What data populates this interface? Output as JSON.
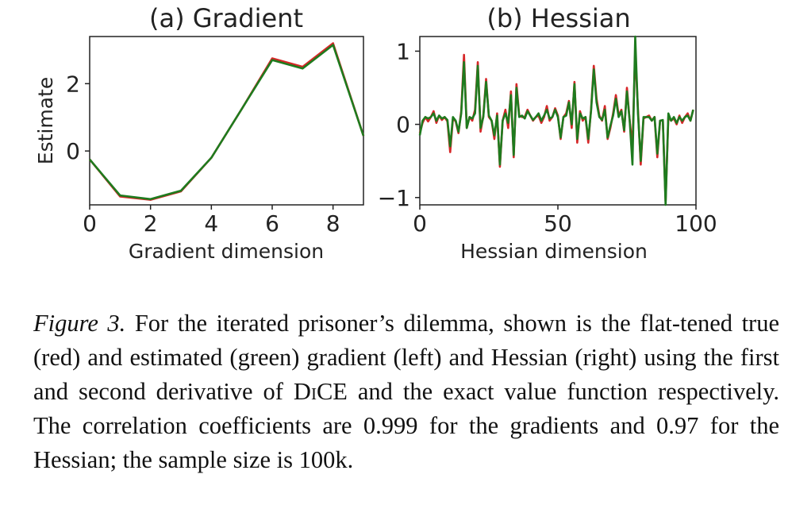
{
  "chart_data": [
    {
      "type": "line",
      "title": "(a) Gradient",
      "xlabel": "Gradient dimension",
      "ylabel": "Estimate",
      "xlim": [
        0,
        9
      ],
      "ylim": [
        -1.6,
        3.4
      ],
      "xticks": [
        0,
        2,
        4,
        6,
        8
      ],
      "yticks": [
        0,
        2
      ],
      "x": [
        0,
        1,
        2,
        3,
        4,
        5,
        6,
        7,
        8,
        9
      ],
      "series": [
        {
          "name": "true",
          "color": "#d62728",
          "values": [
            -0.25,
            -1.35,
            -1.45,
            -1.2,
            -0.2,
            1.25,
            2.75,
            2.5,
            3.2,
            0.45
          ]
        },
        {
          "name": "estimated",
          "color": "#1e7b1e",
          "values": [
            -0.25,
            -1.32,
            -1.43,
            -1.18,
            -0.2,
            1.25,
            2.7,
            2.45,
            3.15,
            0.45
          ]
        }
      ]
    },
    {
      "type": "line",
      "title": "(b) Hessian",
      "xlabel": "Hessian dimension",
      "ylabel": "",
      "xlim": [
        0,
        100
      ],
      "ylim": [
        -1.1,
        1.2
      ],
      "xticks": [
        0,
        50,
        100
      ],
      "yticks": [
        -1,
        0,
        1
      ],
      "x": [
        0,
        1,
        2,
        3,
        4,
        5,
        6,
        7,
        8,
        9,
        10,
        11,
        12,
        13,
        14,
        15,
        16,
        17,
        18,
        19,
        20,
        21,
        22,
        23,
        24,
        25,
        26,
        27,
        28,
        29,
        30,
        31,
        32,
        33,
        34,
        35,
        36,
        37,
        38,
        39,
        40,
        41,
        42,
        43,
        44,
        45,
        46,
        47,
        48,
        49,
        50,
        51,
        52,
        53,
        54,
        55,
        56,
        57,
        58,
        59,
        60,
        61,
        62,
        63,
        64,
        65,
        66,
        67,
        68,
        69,
        70,
        71,
        72,
        73,
        74,
        75,
        76,
        77,
        78,
        79,
        80,
        81,
        82,
        83,
        84,
        85,
        86,
        87,
        88,
        89,
        90,
        91,
        92,
        93,
        94,
        95,
        96,
        97,
        98,
        99
      ],
      "series": [
        {
          "name": "true",
          "color": "#d62728",
          "values": [
            -0.12,
            0.02,
            0.1,
            0.04,
            0.1,
            0.18,
            0.02,
            0.12,
            0.06,
            0.1,
            0.04,
            -0.38,
            0.08,
            0.04,
            -0.12,
            0.18,
            0.95,
            -0.05,
            0.1,
            0.05,
            0.2,
            0.85,
            -0.1,
            0.12,
            0.62,
            0.1,
            0.05,
            -0.2,
            0.15,
            -0.58,
            0.05,
            0.2,
            -0.05,
            0.45,
            -0.45,
            0.55,
            0.12,
            0.1,
            0.1,
            0.2,
            0.12,
            0.05,
            0.1,
            0.12,
            0.02,
            0.1,
            0.25,
            0.05,
            0.1,
            0.22,
            0.12,
            -0.2,
            0.1,
            0.15,
            0.32,
            -0.05,
            0.58,
            -0.25,
            0.18,
            0.05,
            0.1,
            -0.25,
            0.2,
            0.8,
            0.35,
            0.12,
            0.05,
            0.25,
            -0.2,
            -0.05,
            0.15,
            0.4,
            0.12,
            0.2,
            -0.1,
            0.5,
            0.05,
            -0.3,
            1.0,
            0.2,
            -0.55,
            0.08,
            0.1,
            0.12,
            0.05,
            0.1,
            -0.45,
            0.05,
            0.05,
            -1.05,
            0.1,
            0.05,
            0.08,
            0.0,
            0.12,
            0.02,
            0.1,
            0.15,
            0.05,
            0.2
          ]
        },
        {
          "name": "estimated",
          "color": "#1e7b1e",
          "values": [
            -0.15,
            0.05,
            0.1,
            0.08,
            0.1,
            0.15,
            0.05,
            0.12,
            0.08,
            0.1,
            0.06,
            -0.3,
            0.1,
            0.05,
            -0.1,
            0.15,
            0.85,
            -0.05,
            0.1,
            0.08,
            0.15,
            0.8,
            -0.05,
            0.1,
            0.58,
            0.12,
            0.05,
            -0.15,
            0.12,
            -0.55,
            0.05,
            0.15,
            0.02,
            0.4,
            -0.42,
            0.5,
            0.1,
            0.12,
            0.08,
            0.18,
            0.12,
            0.06,
            0.1,
            0.15,
            0.05,
            0.12,
            0.2,
            0.08,
            0.1,
            0.2,
            0.1,
            -0.18,
            0.1,
            0.12,
            0.3,
            0.0,
            0.55,
            -0.2,
            0.15,
            0.08,
            0.1,
            -0.2,
            0.18,
            0.75,
            0.3,
            0.1,
            0.06,
            0.2,
            -0.18,
            -0.02,
            0.12,
            0.35,
            0.1,
            0.18,
            -0.08,
            0.45,
            0.05,
            -0.55,
            1.2,
            0.15,
            -0.5,
            0.1,
            0.1,
            0.1,
            0.05,
            0.1,
            -0.4,
            0.05,
            0.06,
            -1.1,
            0.15,
            0.05,
            0.1,
            0.02,
            0.1,
            0.05,
            0.1,
            0.12,
            0.05,
            0.2
          ]
        }
      ]
    }
  ],
  "caption": {
    "lead": "Figure 3.",
    "text_before": " For the iterated prisoner’s dilemma, shown is the flat-tened true (red) and estimated (green) gradient (left) and Hessian (right) using the first and second derivative of ",
    "method": "DiCE",
    "text_after": " and the exact value function respectively. The correlation coefficients are 0.999 for the gradients and 0.97 for the Hessian; the sample size is 100k."
  }
}
